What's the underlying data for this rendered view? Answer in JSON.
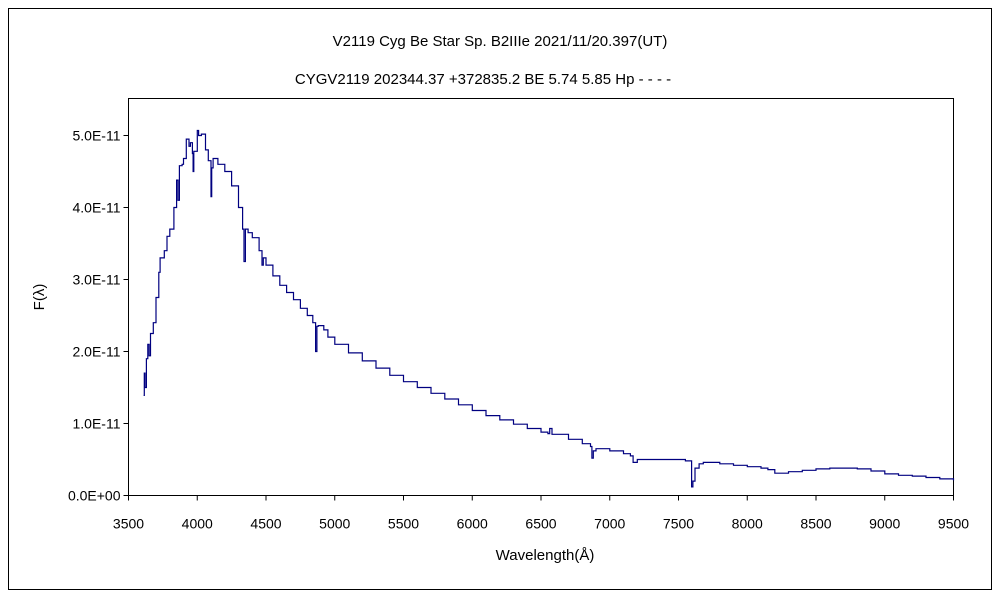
{
  "chart_data": {
    "type": "line",
    "title": "V2119 Cyg    Be Star    Sp. B2IIIe    2021/11/20.397(UT)",
    "subtitle": "CYGV2119 202344.37 +372835.2 BE 5.74 5.85 Hp - - - -",
    "xlabel": "Wavelength(Å)",
    "ylabel": "F(λ)",
    "xlim": [
      3500,
      9500
    ],
    "ylim": [
      0,
      5.5e-11
    ],
    "x_ticks": [
      "3500",
      "4000",
      "4500",
      "5000",
      "5500",
      "6000",
      "6500",
      "7000",
      "7500",
      "8000",
      "8500",
      "9000",
      "9500"
    ],
    "y_ticks": [
      "0.0E+00",
      "1.0E-11",
      "2.0E-11",
      "3.0E-11",
      "4.0E-11",
      "5.0E-11"
    ],
    "grid": false,
    "line_color": "#000080",
    "series": [
      {
        "x": [
          3610,
          3615,
          3620,
          3630,
          3640,
          3650,
          3660,
          3680,
          3700,
          3720,
          3730,
          3760,
          3780,
          3800,
          3830,
          3850,
          3860,
          3870,
          3890,
          3900,
          3920,
          3940,
          3950,
          3965,
          3970,
          3975,
          4000,
          4010,
          4030,
          4060,
          4080,
          4100,
          4105,
          4115,
          4150,
          4200,
          4250,
          4300,
          4330,
          4340,
          4350,
          4370,
          4400,
          4450,
          4471,
          4480,
          4500,
          4550,
          4600,
          4650,
          4700,
          4750,
          4800,
          4840,
          4861,
          4870,
          4880,
          4920,
          4950,
          5000,
          5100,
          5200,
          5300,
          5400,
          5500,
          5600,
          5700,
          5800,
          5900,
          6000,
          6100,
          6200,
          6300,
          6400,
          6500,
          6550,
          6563,
          6580,
          6700,
          6800,
          6860,
          6870,
          6880,
          6900,
          7000,
          7100,
          7150,
          7170,
          7200,
          7300,
          7400,
          7500,
          7550,
          7595,
          7605,
          7620,
          7650,
          7680,
          7800,
          7900,
          8000,
          8100,
          8150,
          8200,
          8300,
          8400,
          8500,
          8600,
          8700,
          8800,
          8900,
          9000,
          9100,
          9200,
          9300,
          9400,
          9500
        ],
        "y": [
          1.39e-11,
          1.7e-11,
          1.5e-11,
          1.9e-11,
          2.1e-11,
          1.94e-11,
          2.25e-11,
          2.4e-11,
          2.75e-11,
          3.1e-11,
          3.3e-11,
          3.4e-11,
          3.6e-11,
          3.7e-11,
          4e-11,
          4.38e-11,
          4.1e-11,
          4.58e-11,
          4.6e-11,
          4.68e-11,
          4.95e-11,
          4.85e-11,
          4.9e-11,
          4.75e-11,
          4.5e-11,
          4.78e-11,
          5.07e-11,
          5e-11,
          5.02e-11,
          4.8e-11,
          4.65e-11,
          4.15e-11,
          4.55e-11,
          4.68e-11,
          4.6e-11,
          4.5e-11,
          4.3e-11,
          4e-11,
          3.7e-11,
          3.25e-11,
          3.7e-11,
          3.65e-11,
          3.58e-11,
          3.4e-11,
          3.2e-11,
          3.3e-11,
          3.2e-11,
          3.05e-11,
          2.92e-11,
          2.82e-11,
          2.72e-11,
          2.6e-11,
          2.5e-11,
          2.4e-11,
          2e-11,
          2.35e-11,
          2.36e-11,
          2.3e-11,
          2.2e-11,
          2.1e-11,
          1.98e-11,
          1.87e-11,
          1.77e-11,
          1.67e-11,
          1.58e-11,
          1.5e-11,
          1.42e-11,
          1.34e-11,
          1.26e-11,
          1.18e-11,
          1.11e-11,
          1.05e-11,
          9.9e-12,
          9.3e-12,
          8.8e-12,
          8.6e-12,
          9.3e-12,
          8.5e-12,
          7.8e-12,
          7.2e-12,
          6.8e-12,
          5.2e-12,
          6.2e-12,
          6.5e-12,
          6.2e-12,
          5.8e-12,
          5.5e-12,
          4.6e-12,
          5e-12,
          5e-12,
          5e-12,
          5e-12,
          4.8e-12,
          1.2e-12,
          2e-12,
          3.8e-12,
          4.4e-12,
          4.6e-12,
          4.4e-12,
          4.2e-12,
          4e-12,
          3.8e-12,
          3.6e-12,
          3.1e-12,
          3.3e-12,
          3.5e-12,
          3.7e-12,
          3.8e-12,
          3.8e-12,
          3.7e-12,
          3.4e-12,
          3e-12,
          2.8e-12,
          2.7e-12,
          2.5e-12,
          2.3e-12,
          2.1e-12
        ]
      }
    ]
  }
}
